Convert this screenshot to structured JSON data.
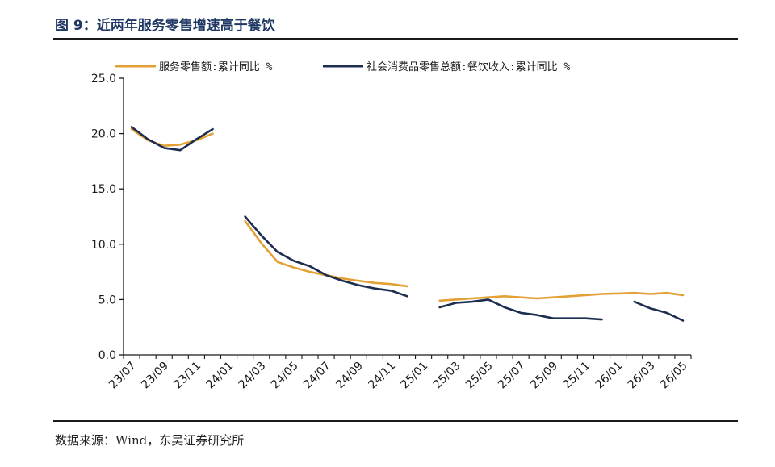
{
  "figure": {
    "title": "图 9：近两年服务零售增速高于餐饮",
    "source": "数据来源：Wind，东吴证券研究所"
  },
  "colors": {
    "title": "#1f3864",
    "series_service": "#e3a035",
    "series_catering": "#1c2d4f",
    "axis": "#1a1a1a"
  },
  "chart_data": {
    "type": "line",
    "x": [
      "23/07",
      "23/08",
      "23/09",
      "23/10",
      "23/11",
      "23/12",
      "24/01",
      "24/02",
      "24/03",
      "24/04",
      "24/05",
      "24/06",
      "24/07",
      "24/08",
      "24/09",
      "24/10",
      "24/11",
      "24/12",
      "25/01",
      "25/02",
      "25/03",
      "25/04",
      "25/05",
      "25/06",
      "25/07",
      "25/08",
      "25/09",
      "25/10",
      "25/11",
      "25/12",
      "26/01",
      "26/02",
      "26/03",
      "26/04",
      "26/05"
    ],
    "x_tick_labels": [
      "23/07",
      "23/09",
      "23/11",
      "24/01",
      "24/03",
      "24/05",
      "24/07",
      "24/09",
      "24/11",
      "25/01",
      "25/03",
      "25/05",
      "25/07",
      "25/09",
      "25/11",
      "26/01",
      "26/03",
      "26/05"
    ],
    "y_tick_labels": [
      "0.0",
      "5.0",
      "10.0",
      "15.0",
      "20.0",
      "25.0"
    ],
    "ylim": [
      0,
      25
    ],
    "series": [
      {
        "name": "服务零售额:累计同比 %",
        "values": [
          20.4,
          19.4,
          18.9,
          19.0,
          19.4,
          20.0,
          null,
          12.1,
          10.1,
          8.4,
          7.9,
          7.5,
          7.2,
          6.9,
          6.7,
          6.5,
          6.4,
          6.2,
          null,
          4.9,
          5.0,
          5.1,
          5.2,
          5.3,
          5.2,
          5.1,
          5.2,
          5.3,
          5.4,
          5.5,
          5.55,
          5.6,
          5.5,
          5.6,
          5.4
        ]
      },
      {
        "name": "社会消费品零售总额:餐饮收入:累计同比 %",
        "values": [
          20.6,
          19.5,
          18.7,
          18.5,
          19.5,
          20.4,
          null,
          12.5,
          10.8,
          9.3,
          8.5,
          8.0,
          7.2,
          6.7,
          6.3,
          6.0,
          5.8,
          5.3,
          null,
          4.3,
          4.7,
          4.8,
          5.0,
          4.3,
          3.8,
          3.6,
          3.3,
          3.3,
          3.3,
          3.2,
          null,
          4.8,
          4.2,
          3.8,
          3.1
        ]
      }
    ],
    "legend_position": "top",
    "grid": false
  }
}
